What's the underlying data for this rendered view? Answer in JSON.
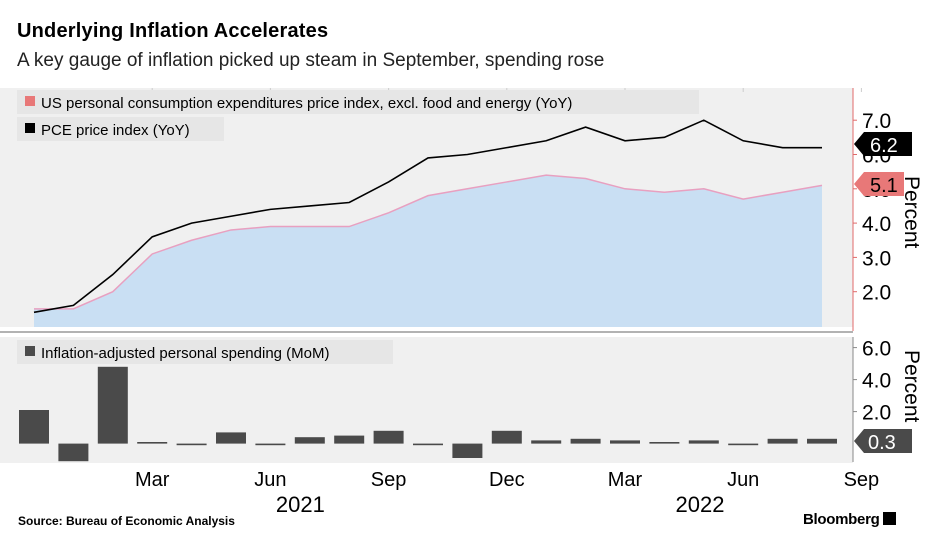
{
  "header": {
    "title": "Underlying Inflation Accelerates",
    "subtitle": "A key gauge of inflation picked up steam in September, spending rose"
  },
  "footer": {
    "source": "Source:  Bureau of Economic Analysis",
    "brand": "Bloomberg"
  },
  "colors": {
    "pce": "#000000",
    "core_line": "#e8a0c0",
    "core_fill": "#c9dff3",
    "core_marker": "#e87878",
    "spending_bar": "#4a4a4a",
    "panel_bg": "#f0f0f0",
    "axis_accent": "#e06a6a"
  },
  "chart_data": [
    {
      "type": "area",
      "x": [
        "2020-12",
        "2021-01",
        "2021-02",
        "2021-03",
        "2021-04",
        "2021-05",
        "2021-06",
        "2021-07",
        "2021-08",
        "2021-09",
        "2021-10",
        "2021-11",
        "2021-12",
        "2022-01",
        "2022-02",
        "2022-03",
        "2022-04",
        "2022-05",
        "2022-06",
        "2022-07",
        "2022-08",
        "2022-09"
      ],
      "series": [
        {
          "name": "US personal consumption expenditures price index, excl. food and energy (YoY)",
          "values": [
            1.5,
            1.5,
            2.0,
            3.1,
            3.5,
            3.8,
            3.9,
            3.9,
            3.9,
            4.3,
            4.8,
            5.0,
            5.2,
            5.4,
            5.3,
            5.0,
            4.9,
            5.0,
            4.7,
            4.9,
            5.1,
            null
          ]
        },
        {
          "name": "PCE price index (YoY)",
          "values": [
            1.4,
            1.6,
            2.5,
            3.6,
            4.0,
            4.2,
            4.4,
            4.5,
            4.6,
            5.2,
            5.9,
            6.0,
            6.2,
            6.4,
            6.8,
            6.4,
            6.5,
            7.0,
            6.4,
            6.2,
            6.2,
            null
          ]
        }
      ],
      "ylabel": "Percent",
      "yticks": [
        "2.0",
        "3.0",
        "4.0",
        "5.0",
        "6.0",
        "7.0"
      ],
      "ylim": [
        1.0,
        7.5
      ],
      "grid": false,
      "legend": "top-left",
      "end_labels": [
        "6.2",
        "5.1"
      ]
    },
    {
      "type": "bar",
      "x": [
        "2020-12",
        "2021-01",
        "2021-02",
        "2021-03",
        "2021-04",
        "2021-05",
        "2021-06",
        "2021-07",
        "2021-08",
        "2021-09",
        "2021-10",
        "2021-11",
        "2021-12",
        "2022-01",
        "2022-02",
        "2022-03",
        "2022-04",
        "2022-05",
        "2022-06",
        "2022-07",
        "2022-08",
        "2022-09"
      ],
      "series": [
        {
          "name": "Inflation-adjusted personal spending (MoM)",
          "values": [
            2.1,
            -1.1,
            4.8,
            0.1,
            -0.1,
            0.7,
            -0.1,
            0.4,
            0.5,
            0.8,
            -0.1,
            -0.9,
            0.8,
            0.2,
            0.3,
            0.2,
            0.1,
            0.2,
            -0.1,
            0.3,
            0.3,
            null
          ]
        }
      ],
      "ylabel": "Percent",
      "yticks": [
        "2.0",
        "4.0",
        "6.0"
      ],
      "ylim": [
        -1.5,
        6.5
      ],
      "grid": false,
      "legend": "top-left",
      "end_labels": [
        "0.3"
      ]
    }
  ],
  "x_axis": {
    "tick_labels": [
      {
        "label": "Mar",
        "month": "2021-03"
      },
      {
        "label": "Jun",
        "month": "2021-06"
      },
      {
        "label": "Sep",
        "month": "2021-09"
      },
      {
        "label": "Dec",
        "month": "2021-12"
      },
      {
        "label": "Mar",
        "month": "2022-03"
      },
      {
        "label": "Jun",
        "month": "2022-06"
      },
      {
        "label": "Sep",
        "month": "2022-09"
      }
    ],
    "year_labels": [
      {
        "label": "2021",
        "month": "2021-06"
      },
      {
        "label": "2022",
        "month": "2022-03"
      }
    ]
  }
}
